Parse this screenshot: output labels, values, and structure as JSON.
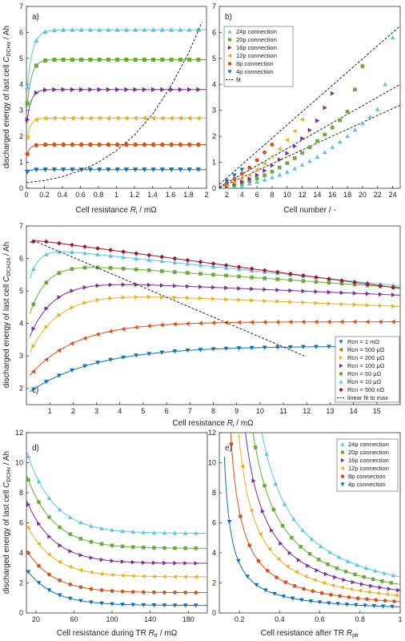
{
  "colors": {
    "24p": "#5bc5e8",
    "20p": "#6aaa3a",
    "16p": "#7b2f9e",
    "12p": "#edb120",
    "8p": "#d95319",
    "4p": "#0a72bd",
    "500u": "#d95319",
    "200u": "#edb120",
    "100u": "#7b2f9e",
    "50u": "#6aaa3a",
    "10u": "#5bc5e8",
    "500n": "#a2142f"
  },
  "shared_ylabel": "discharged energy of last cell",
  "chart_data": [
    {
      "panel": "a)",
      "type": "line",
      "xlabel_main": "Cell resistance ",
      "xlabel_sym": "R",
      "xlabel_sub": "i",
      "xlabel_unit": " / mΩ",
      "ylabel_sym": "C",
      "ylabel_sub": "DCHx",
      "ylabel_unit": " / Ah",
      "xlim": [
        0,
        2
      ],
      "ylim": [
        0,
        7
      ],
      "xticks": [
        "0",
        "0.2",
        "0.4",
        "0.6",
        "0.8",
        "1",
        "1.2",
        "1.4",
        "1.6",
        "1.8",
        "2"
      ],
      "yticks": [
        "0",
        "1",
        "2",
        "3",
        "4",
        "5",
        "6",
        "7"
      ],
      "series": [
        {
          "key": "24p",
          "marker": "triangle-up",
          "start": 3.5,
          "plateau": 6.1,
          "k": 0.06
        },
        {
          "key": "20p",
          "marker": "square",
          "start": 2.9,
          "plateau": 4.95,
          "k": 0.05
        },
        {
          "key": "16p",
          "marker": "triangle-right",
          "start": 2.35,
          "plateau": 3.8,
          "k": 0.045
        },
        {
          "key": "12p",
          "marker": "triangle-left",
          "start": 1.75,
          "plateau": 2.7,
          "k": 0.04
        },
        {
          "key": "8p",
          "marker": "circle",
          "start": 1.2,
          "plateau": 1.68,
          "k": 0.035
        },
        {
          "key": "4p",
          "marker": "triangle-down",
          "start": 0.6,
          "plateau": 0.72,
          "k": 0.03
        }
      ],
      "dashed_curve": {
        "x": [
          0,
          0.2,
          0.4,
          0.6,
          0.8,
          1.0,
          1.2,
          1.4,
          1.6,
          1.8,
          1.95
        ],
        "y": [
          0.22,
          0.3,
          0.45,
          0.68,
          1.0,
          1.45,
          2.05,
          2.85,
          3.9,
          5.2,
          6.4
        ]
      }
    },
    {
      "panel": "b)",
      "type": "scatter",
      "xlabel": "Cell number / -",
      "xlim": [
        1,
        25
      ],
      "ylim": [
        0,
        7
      ],
      "xticks": [
        "2",
        "4",
        "6",
        "8",
        "10",
        "12",
        "14",
        "16",
        "18",
        "20",
        "22",
        "24"
      ],
      "yticks": [
        "0",
        "1",
        "2",
        "3",
        "4",
        "5",
        "6",
        "7"
      ],
      "legend": [
        "24p connection",
        "20p connection",
        "16p connection",
        "12p connection",
        "8p connection",
        "4p connection",
        "fit"
      ],
      "series": [
        {
          "key": "24p",
          "marker": "triangle-up",
          "x": [
            2,
            3,
            4,
            5,
            6,
            7,
            8,
            9,
            10,
            11,
            12,
            13,
            14,
            15,
            16,
            17,
            18,
            19,
            20,
            21,
            22,
            23,
            24
          ],
          "y": [
            0.05,
            0.08,
            0.12,
            0.18,
            0.25,
            0.33,
            0.42,
            0.52,
            0.63,
            0.76,
            0.9,
            1.05,
            1.21,
            1.39,
            1.58,
            1.79,
            2.01,
            2.25,
            2.5,
            2.76,
            3.04,
            4.0,
            5.8
          ]
        },
        {
          "key": "20p",
          "marker": "square",
          "x": [
            2,
            3,
            4,
            5,
            6,
            7,
            8,
            9,
            10,
            11,
            12,
            13,
            14,
            15,
            16,
            17,
            18,
            19,
            20
          ],
          "y": [
            0.07,
            0.12,
            0.19,
            0.28,
            0.38,
            0.5,
            0.64,
            0.8,
            0.97,
            1.16,
            1.36,
            1.58,
            1.82,
            2.07,
            2.34,
            2.62,
            2.95,
            3.8,
            4.7
          ]
        },
        {
          "key": "16p",
          "marker": "triangle-right",
          "x": [
            2,
            3,
            4,
            5,
            6,
            7,
            8,
            9,
            10,
            11,
            12,
            13,
            14,
            15,
            16
          ],
          "y": [
            0.09,
            0.16,
            0.25,
            0.37,
            0.51,
            0.68,
            0.88,
            1.1,
            1.35,
            1.62,
            1.92,
            2.24,
            2.6,
            3.1,
            3.65
          ]
        },
        {
          "key": "12p",
          "marker": "triangle-left",
          "x": [
            2,
            3,
            4,
            5,
            6,
            7,
            8,
            9,
            10,
            11,
            12
          ],
          "y": [
            0.12,
            0.22,
            0.36,
            0.52,
            0.72,
            0.95,
            1.22,
            1.52,
            1.86,
            2.2,
            2.65
          ]
        },
        {
          "key": "8p",
          "marker": "circle",
          "x": [
            2,
            3,
            4,
            5,
            6,
            7,
            8
          ],
          "y": [
            0.2,
            0.36,
            0.56,
            0.8,
            1.08,
            1.38,
            1.68
          ]
        },
        {
          "key": "4p",
          "marker": "triangle-down",
          "x": [
            2,
            3,
            4
          ],
          "y": [
            0.28,
            0.5,
            0.72
          ]
        }
      ],
      "fit_lines": [
        {
          "x": [
            1,
            25
          ],
          "y": [
            0.15,
            6.25
          ]
        },
        {
          "x": [
            1,
            25
          ],
          "y": [
            0.05,
            4.0
          ]
        },
        {
          "x": [
            1,
            25
          ],
          "y": [
            0.02,
            3.2
          ]
        }
      ]
    },
    {
      "panel": "c)",
      "type": "line",
      "xlabel_main": "Cell resistance ",
      "xlabel_sym": "R",
      "xlabel_sub": "i",
      "xlabel_unit": " / mΩ",
      "ylabel_sym": "C",
      "ylabel_sub": "DCH24",
      "ylabel_unit": " / Ah",
      "xlim": [
        0,
        16
      ],
      "ylim": [
        1.5,
        7
      ],
      "xticks": [
        "1",
        "2",
        "3",
        "4",
        "5",
        "6",
        "7",
        "8",
        "9",
        "10",
        "11",
        "12",
        "13",
        "14",
        "15"
      ],
      "yticks": [
        "2",
        "3",
        "4",
        "5",
        "6",
        "7"
      ],
      "legend": [
        "Rcn = 1 mΩ",
        "Rcn = 500 μΩ",
        "Rcn = 200 μΩ",
        "Rcn = 100 μΩ",
        "Rcn = 50 μΩ",
        "Rcn = 10 μΩ",
        "Rcn = 500 nΩ",
        "linear fit to max"
      ],
      "series": [
        {
          "key": "4p",
          "marker": "triangle-down",
          "start": 1.9,
          "plateau": 3.3,
          "k": 0.35,
          "slope": 0.0
        },
        {
          "key": "500u",
          "marker": "triangle-left",
          "start": 2.4,
          "plateau": 4.05,
          "k": 0.5,
          "slope": 0.0
        },
        {
          "key": "200u",
          "marker": "triangle-right",
          "start": 3.1,
          "plateau": 5.0,
          "k": 0.8,
          "slope": 0.03
        },
        {
          "key": "100u",
          "marker": "triangle-right",
          "start": 3.6,
          "plateau": 5.35,
          "k": 1.0,
          "slope": 0.03
        },
        {
          "key": "50u",
          "marker": "square",
          "start": 4.3,
          "plateau": 5.9,
          "k": 1.4,
          "slope": 0.05
        },
        {
          "key": "10u",
          "marker": "triangle-up",
          "start": 5.4,
          "plateau": 6.35,
          "k": 2.5,
          "slope": 0.075
        },
        {
          "key": "500n",
          "marker": "diamond",
          "start": 6.5,
          "plateau": 6.6,
          "k": 5.0,
          "slope": 0.095
        }
      ],
      "fit_line": {
        "x": [
          0.3,
          11.9
        ],
        "y": [
          6.55,
          3.0
        ]
      }
    },
    {
      "panel": "d)",
      "type": "line",
      "xlabel_main": "Cell resistance during TR ",
      "xlabel_sym": "R",
      "xlabel_sub": "tr",
      "xlabel_unit": " / mΩ",
      "ylabel_sym": "C",
      "ylabel_sub": "DCHx",
      "ylabel_unit": " / Ah",
      "xlim": [
        10,
        200
      ],
      "ylim": [
        0,
        12
      ],
      "xticks": [
        "20",
        "60",
        "100",
        "140",
        "180"
      ],
      "yticks": [
        "0",
        "2",
        "4",
        "6",
        "8",
        "10",
        "12"
      ],
      "series": [
        {
          "key": "24p",
          "marker": "triangle-up",
          "start": 10.8,
          "plateau": 5.3
        },
        {
          "key": "20p",
          "marker": "square",
          "start": 9.2,
          "plateau": 4.3
        },
        {
          "key": "16p",
          "marker": "triangle-right",
          "start": 7.5,
          "plateau": 3.3
        },
        {
          "key": "12p",
          "marker": "triangle-left",
          "start": 5.9,
          "plateau": 2.4
        },
        {
          "key": "8p",
          "marker": "circle",
          "start": 4.2,
          "plateau": 1.35
        },
        {
          "key": "4p",
          "marker": "triangle-down",
          "start": 2.9,
          "plateau": 0.5
        }
      ]
    },
    {
      "panel": "e)",
      "type": "line",
      "xlabel_main": "Cell resistance after TR ",
      "xlabel_sym": "R",
      "xlabel_sub": "ptr",
      "xlabel_unit": "",
      "xlim": [
        0.1,
        1.0
      ],
      "ylim": [
        0,
        12
      ],
      "xticks": [
        "0.2",
        "0.4",
        "0.6",
        "0.8",
        "1"
      ],
      "yticks": [
        "0",
        "2",
        "4",
        "6",
        "8",
        "10",
        "12"
      ],
      "legend": [
        "24p connection",
        "20p connection",
        "16p connection",
        "12p connection",
        "8p connection",
        "4p connection"
      ],
      "series": [
        {
          "key": "24p",
          "marker": "triangle-up",
          "end": 2.4,
          "x0": 0.16
        },
        {
          "key": "20p",
          "marker": "square",
          "end": 1.9,
          "x0": 0.15
        },
        {
          "key": "16p",
          "marker": "triangle-right",
          "end": 1.5,
          "x0": 0.14
        },
        {
          "key": "12p",
          "marker": "triangle-left",
          "end": 1.15,
          "x0": 0.13
        },
        {
          "key": "8p",
          "marker": "circle",
          "end": 0.75,
          "x0": 0.12
        },
        {
          "key": "4p",
          "marker": "triangle-down",
          "end": 0.4,
          "x0": 0.11
        }
      ]
    }
  ]
}
